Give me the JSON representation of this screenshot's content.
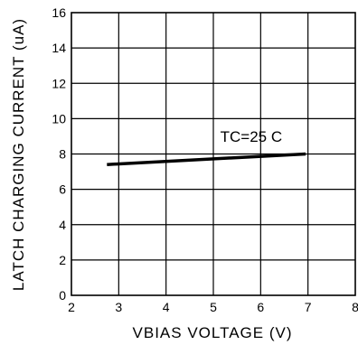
{
  "chart_data": {
    "type": "line",
    "title": "",
    "xlabel": "VBIAS VOLTAGE (V)",
    "ylabel": "LATCH CHARGING CURRENT (uA)",
    "xlim": [
      2,
      8
    ],
    "ylim": [
      0,
      16
    ],
    "x_ticks": [
      "2",
      "3",
      "4",
      "5",
      "6",
      "7",
      "8"
    ],
    "y_ticks": [
      "0",
      "2",
      "4",
      "6",
      "8",
      "10",
      "12",
      "14",
      "16"
    ],
    "grid": true,
    "legend": "none",
    "annotations": [
      {
        "text": "TC=25 C",
        "x": 5.8,
        "y": 8.7
      }
    ],
    "series": [
      {
        "x": [
          2.75,
          6.95
        ],
        "y": [
          7.4,
          8.0
        ],
        "color": "#000000"
      }
    ]
  }
}
